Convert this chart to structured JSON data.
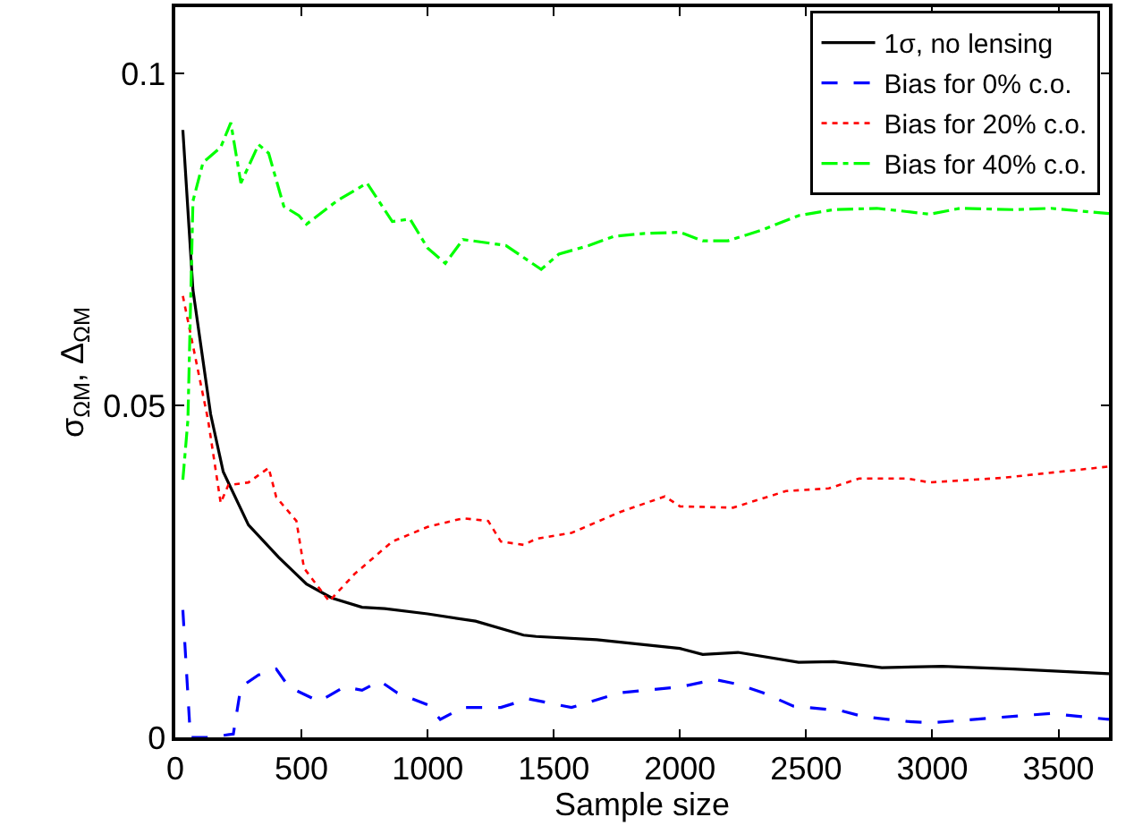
{
  "chart_data": {
    "type": "line",
    "xlabel": "Sample size",
    "ylabel": "σ$_{ΩM}$, Δ$_{ΩM}$",
    "xlim": [
      0,
      3700
    ],
    "xticks": [
      0,
      500,
      1000,
      1500,
      2000,
      2500,
      3000,
      3500
    ],
    "ylim": [
      0,
      0.11
    ],
    "yticks": [
      0,
      0.05,
      0.1
    ],
    "legend": "top right",
    "marker": "none",
    "series": [
      {
        "name": "1σ, no lensing",
        "color": "#000000",
        "line_style": "solid",
        "x": [
          30,
          70,
          140,
          190,
          290,
          410,
          520,
          620,
          740,
          830,
          1000,
          1190,
          1380,
          1430,
          1670,
          2000,
          2090,
          2230,
          2470,
          2610,
          2800,
          3040,
          3320,
          3700
        ],
        "values": [
          0.0915,
          0.0674,
          0.0487,
          0.04,
          0.032,
          0.0271,
          0.0231,
          0.021,
          0.0196,
          0.0194,
          0.0186,
          0.0175,
          0.0154,
          0.0152,
          0.0147,
          0.0134,
          0.0125,
          0.0128,
          0.0113,
          0.0114,
          0.0105,
          0.0107,
          0.0103,
          0.0096
        ]
      },
      {
        "name": "Bias for 0% c.o.",
        "color": "#0000ff",
        "line_style": "dashed",
        "x": [
          30,
          60,
          130,
          230,
          260,
          330,
          400,
          450,
          570,
          670,
          740,
          810,
          880,
          1000,
          1050,
          1140,
          1290,
          1400,
          1570,
          1760,
          2000,
          2140,
          2230,
          2330,
          2450,
          2640,
          2730,
          2900,
          3000,
          3230,
          3470,
          3700
        ],
        "values": [
          0.0192,
          0,
          0,
          0.0005,
          0.0076,
          0.0094,
          0.0103,
          0.0076,
          0.0054,
          0.0076,
          0.0071,
          0.0085,
          0.0067,
          0.0049,
          0.0027,
          0.0045,
          0.0045,
          0.0058,
          0.0045,
          0.0067,
          0.0076,
          0.0087,
          0.008,
          0.0067,
          0.0047,
          0.004,
          0.0031,
          0.0024,
          0.0022,
          0.0029,
          0.0036,
          0.0027
        ]
      },
      {
        "name": "Bias for 20% c.o.",
        "color": "#ff0000",
        "line_style": "dotted",
        "x": [
          30,
          130,
          180,
          210,
          290,
          370,
          400,
          480,
          510,
          610,
          710,
          860,
          1000,
          1140,
          1240,
          1290,
          1380,
          1430,
          1570,
          1760,
          1940,
          2000,
          2210,
          2420,
          2590,
          2710,
          2900,
          2990,
          3280,
          3700
        ],
        "values": [
          0.0665,
          0.0478,
          0.0353,
          0.038,
          0.0384,
          0.0406,
          0.0362,
          0.0326,
          0.0255,
          0.0205,
          0.0246,
          0.0295,
          0.0317,
          0.033,
          0.0326,
          0.0295,
          0.029,
          0.0299,
          0.0308,
          0.0339,
          0.0363,
          0.0348,
          0.0346,
          0.0371,
          0.0375,
          0.039,
          0.039,
          0.0384,
          0.0391,
          0.0408
        ]
      },
      {
        "name": "Bias for 40% c.o.",
        "color": "#00ff00",
        "line_style": "dashdot",
        "x": [
          30,
          50,
          70,
          110,
          180,
          220,
          260,
          330,
          370,
          430,
          490,
          520,
          640,
          760,
          860,
          930,
          1000,
          1070,
          1140,
          1310,
          1450,
          1520,
          1640,
          1740,
          1860,
          2000,
          2090,
          2190,
          2330,
          2470,
          2610,
          2780,
          2900,
          2990,
          3110,
          3320,
          3470,
          3700
        ],
        "values": [
          0.0388,
          0.0478,
          0.0808,
          0.0866,
          0.0889,
          0.0926,
          0.0835,
          0.0893,
          0.088,
          0.08,
          0.0786,
          0.0773,
          0.0808,
          0.0835,
          0.0777,
          0.0781,
          0.0737,
          0.0714,
          0.075,
          0.0741,
          0.0705,
          0.0728,
          0.0741,
          0.0755,
          0.0759,
          0.0761,
          0.0748,
          0.0748,
          0.0765,
          0.0786,
          0.0795,
          0.0797,
          0.0792,
          0.0788,
          0.0797,
          0.0795,
          0.0797,
          0.0789
        ]
      }
    ]
  }
}
